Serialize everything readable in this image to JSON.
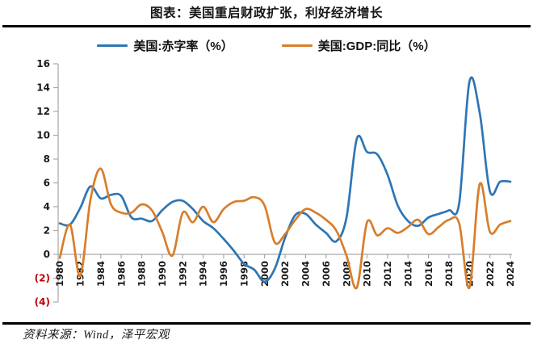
{
  "header": {
    "title": "图表：美国重启财政扩张，利好经济增长"
  },
  "legend": {
    "items": [
      {
        "label": "美国:赤字率（%）",
        "color": "#2E75B6"
      },
      {
        "label": "美国:GDP:同比（%）",
        "color": "#D87E2B"
      }
    ]
  },
  "footer": {
    "source": "资料来源：Wind，泽平宏观"
  },
  "colors": {
    "deficit_line": "#2E75B6",
    "gdp_line": "#D87E2B",
    "axis": "#A8A8A8",
    "tick_label": "#1a1a1a",
    "negative_tick_label": "#C00000",
    "divider": "#000000"
  },
  "chart_data": {
    "type": "line",
    "title": "图表：美国重启财政扩张，利好经济增长",
    "xlabel": "",
    "ylabel": "",
    "ylim": [
      -4,
      16
    ],
    "grid": false,
    "legend_position": "top",
    "smooth": true,
    "yticks": [
      16,
      14,
      12,
      10,
      8,
      6,
      4,
      2,
      0,
      -2,
      -4
    ],
    "ytick_negative_format": "red-parentheses",
    "xticks": [
      1980,
      1982,
      1984,
      1986,
      1988,
      1990,
      1992,
      1994,
      1996,
      1998,
      2000,
      2002,
      2004,
      2006,
      2008,
      2010,
      2012,
      2014,
      2016,
      2018,
      2020,
      2022,
      2024
    ],
    "x": [
      1980,
      1981,
      1982,
      1983,
      1984,
      1985,
      1986,
      1987,
      1988,
      1989,
      1990,
      1991,
      1992,
      1993,
      1994,
      1995,
      1996,
      1997,
      1998,
      1999,
      2000,
      2001,
      2002,
      2003,
      2004,
      2005,
      2006,
      2007,
      2008,
      2009,
      2010,
      2011,
      2012,
      2013,
      2014,
      2015,
      2016,
      2017,
      2018,
      2019,
      2020,
      2021,
      2022,
      2023,
      2024
    ],
    "series": [
      {
        "name": "美国:赤字率（%）",
        "color": "#2E75B6",
        "values": [
          2.6,
          2.5,
          3.9,
          5.7,
          4.7,
          5.0,
          4.9,
          3.1,
          3.0,
          2.8,
          3.7,
          4.4,
          4.5,
          3.8,
          2.8,
          2.2,
          1.3,
          0.3,
          -0.8,
          -1.3,
          -2.3,
          -1.2,
          1.4,
          3.3,
          3.4,
          2.5,
          1.8,
          1.1,
          3.1,
          9.7,
          8.6,
          8.4,
          6.7,
          4.1,
          2.8,
          2.4,
          3.1,
          3.4,
          3.7,
          4.3,
          14.5,
          11.9,
          5.3,
          6.1,
          6.1
        ]
      },
      {
        "name": "美国:GDP:同比（%）",
        "color": "#D87E2B",
        "values": [
          -0.3,
          2.5,
          -1.8,
          4.6,
          7.2,
          4.2,
          3.5,
          3.5,
          4.2,
          3.7,
          1.9,
          -0.1,
          3.5,
          2.7,
          4.0,
          2.7,
          3.8,
          4.4,
          4.5,
          4.8,
          4.1,
          1.0,
          1.7,
          2.9,
          3.8,
          3.5,
          2.9,
          2.0,
          -0.1,
          -2.8,
          2.7,
          1.6,
          2.2,
          1.8,
          2.3,
          2.9,
          1.7,
          2.3,
          2.9,
          2.6,
          -2.8,
          5.9,
          1.9,
          2.5,
          2.8
        ]
      }
    ]
  }
}
